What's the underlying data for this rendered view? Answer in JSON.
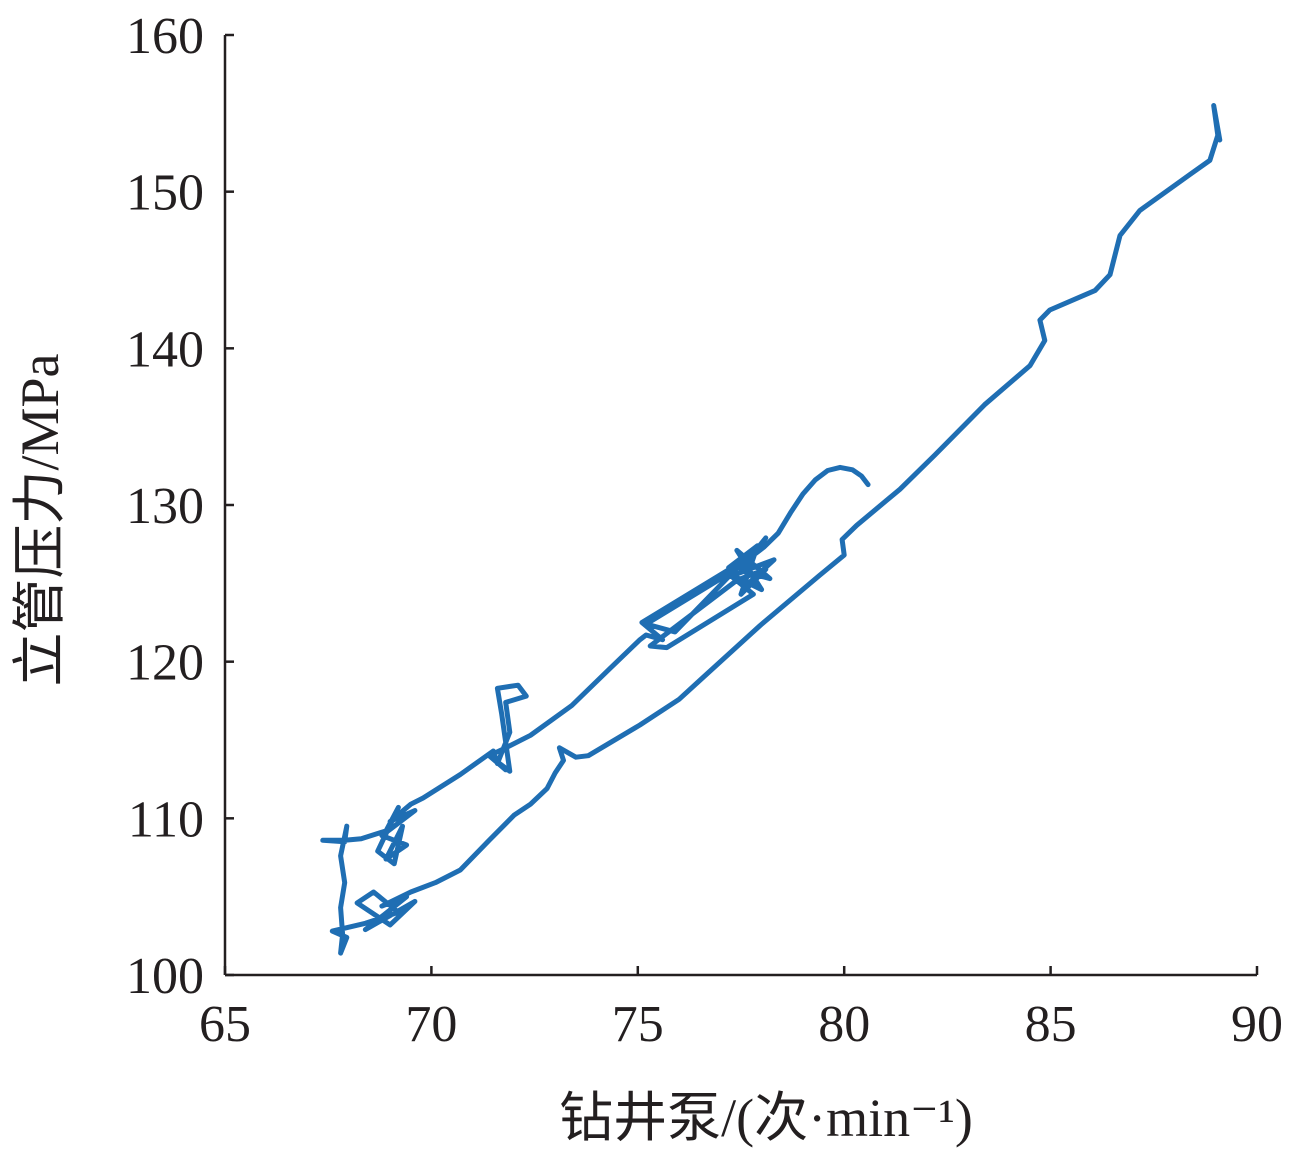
{
  "chart_data": {
    "type": "line",
    "xlabel": "钻井泵/(次·min⁻¹)",
    "ylabel": "立管压力/MPa",
    "xlim": [
      65,
      90
    ],
    "ylim": [
      100,
      160
    ],
    "xticks": [
      65,
      70,
      75,
      80,
      85,
      90
    ],
    "yticks": [
      100,
      110,
      120,
      130,
      140,
      150,
      160
    ],
    "grid": false,
    "axis_color": "#231f20",
    "series": [
      {
        "color": "#1f6eb3",
        "points": [
          [
            80.58,
            131.3
          ],
          [
            80.42,
            131.85
          ],
          [
            80.2,
            132.25
          ],
          [
            79.9,
            132.4
          ],
          [
            79.6,
            132.2
          ],
          [
            79.3,
            131.6
          ],
          [
            79.0,
            130.7
          ],
          [
            78.7,
            129.5
          ],
          [
            78.4,
            128.2
          ],
          [
            78.05,
            127.3
          ],
          [
            77.7,
            126.6
          ],
          [
            78.1,
            127.9
          ],
          [
            77.5,
            125.8
          ],
          [
            78.2,
            125.3
          ],
          [
            77.4,
            127.1
          ],
          [
            78.0,
            124.6
          ],
          [
            77.3,
            125.5
          ],
          [
            78.3,
            126.5
          ],
          [
            77.6,
            124.8
          ],
          [
            77.2,
            126.0
          ],
          [
            77.9,
            127.4
          ],
          [
            77.5,
            124.3
          ],
          [
            78.1,
            125.9
          ],
          [
            77.4,
            125.2
          ],
          [
            75.3,
            121.0
          ],
          [
            75.7,
            120.9
          ],
          [
            77.8,
            124.3
          ],
          [
            77.2,
            125.6
          ],
          [
            75.2,
            122.4
          ],
          [
            75.9,
            121.9
          ],
          [
            77.6,
            126.5
          ],
          [
            75.1,
            122.5
          ],
          [
            75.6,
            121.4
          ],
          [
            75.2,
            121.7
          ],
          [
            75.05,
            121.4
          ],
          [
            74.3,
            119.5
          ],
          [
            73.4,
            117.2
          ],
          [
            72.4,
            115.3
          ],
          [
            71.8,
            114.5
          ],
          [
            71.4,
            114.0
          ],
          [
            71.8,
            113.1
          ],
          [
            71.5,
            113.8
          ],
          [
            71.9,
            113.0
          ],
          [
            71.7,
            116.7
          ],
          [
            71.6,
            118.3
          ],
          [
            72.1,
            118.5
          ],
          [
            72.3,
            117.8
          ],
          [
            71.8,
            117.4
          ],
          [
            71.9,
            115.5
          ],
          [
            71.6,
            113.5
          ],
          [
            71.5,
            114.3
          ],
          [
            70.7,
            112.8
          ],
          [
            69.8,
            111.3
          ],
          [
            69.5,
            110.9
          ],
          [
            69.0,
            109.8
          ],
          [
            69.6,
            110.5
          ],
          [
            68.8,
            108.9
          ],
          [
            69.4,
            108.3
          ],
          [
            68.9,
            107.4
          ],
          [
            69.3,
            109.5
          ],
          [
            69.1,
            107.1
          ],
          [
            68.7,
            107.9
          ],
          [
            69.2,
            110.7
          ],
          [
            68.9,
            109.2
          ],
          [
            68.3,
            108.7
          ],
          [
            67.9,
            108.6
          ],
          [
            67.37,
            108.6
          ],
          [
            67.9,
            108.5
          ],
          [
            67.95,
            109.5
          ],
          [
            67.8,
            107.6
          ],
          [
            67.9,
            105.9
          ],
          [
            67.8,
            104.3
          ],
          [
            67.85,
            102.6
          ],
          [
            67.8,
            101.4
          ],
          [
            67.95,
            102.4
          ],
          [
            67.6,
            102.8
          ],
          [
            68.4,
            103.3
          ],
          [
            69.2,
            104.0
          ],
          [
            68.6,
            105.3
          ],
          [
            68.2,
            104.6
          ],
          [
            69.0,
            103.2
          ],
          [
            69.6,
            104.7
          ],
          [
            68.4,
            102.9
          ],
          [
            69.4,
            105.0
          ],
          [
            68.8,
            104.4
          ],
          [
            69.5,
            105.3
          ],
          [
            70.1,
            105.9
          ],
          [
            70.7,
            106.7
          ],
          [
            71.4,
            108.6
          ],
          [
            72.0,
            110.2
          ],
          [
            72.4,
            110.9
          ],
          [
            72.8,
            111.9
          ],
          [
            73.0,
            112.9
          ],
          [
            73.2,
            113.7
          ],
          [
            73.1,
            114.5
          ],
          [
            73.5,
            113.9
          ],
          [
            73.8,
            114.0
          ],
          [
            75.05,
            115.96
          ],
          [
            76.0,
            117.6
          ],
          [
            76.5,
            118.8
          ],
          [
            77.96,
            122.3
          ],
          [
            79.4,
            125.5
          ],
          [
            80.0,
            126.8
          ],
          [
            79.95,
            127.8
          ],
          [
            80.3,
            128.7
          ],
          [
            81.35,
            131.0
          ],
          [
            82.2,
            133.2
          ],
          [
            83.4,
            136.4
          ],
          [
            84.5,
            138.9
          ],
          [
            84.86,
            140.5
          ],
          [
            84.74,
            141.8
          ],
          [
            84.98,
            142.45
          ],
          [
            86.08,
            143.7
          ],
          [
            86.44,
            144.7
          ],
          [
            86.68,
            147.2
          ],
          [
            87.16,
            148.8
          ],
          [
            88.38,
            151.1
          ],
          [
            88.86,
            152.0
          ],
          [
            89.05,
            153.6
          ],
          [
            88.95,
            155.5
          ],
          [
            89.1,
            153.3
          ]
        ]
      }
    ]
  }
}
